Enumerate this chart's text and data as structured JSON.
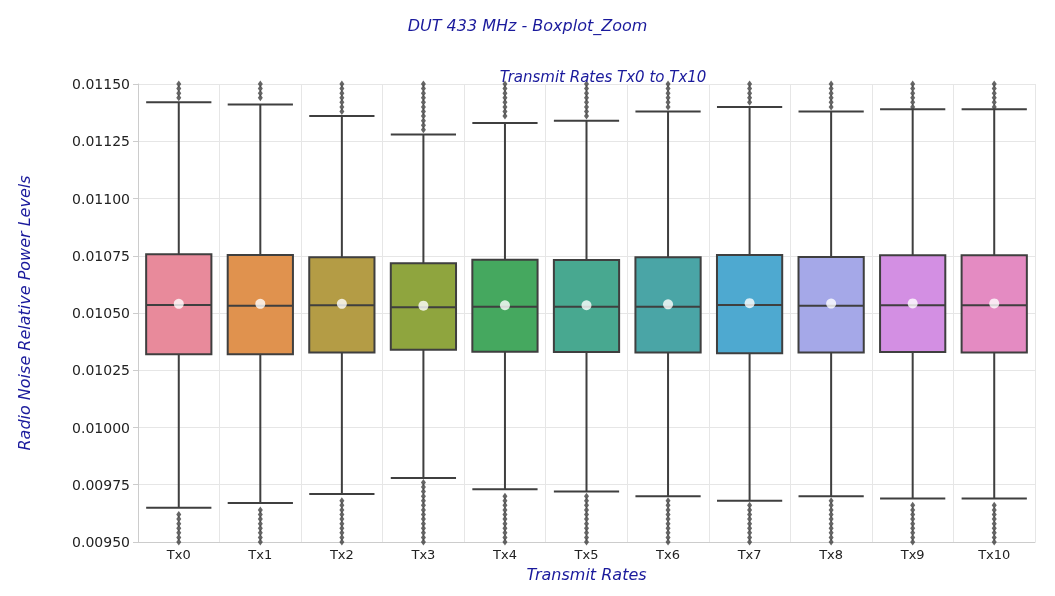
{
  "chart_data": {
    "type": "box",
    "title": "DUT 433 MHz - Boxplot_Zoom",
    "subtitle": "Transmit Rates Tx0 to Tx10",
    "xlabel": "Transmit Rates",
    "ylabel": "Radio Noise Relative Power Levels",
    "categories": [
      "Tx0",
      "Tx1",
      "Tx2",
      "Tx3",
      "Tx4",
      "Tx5",
      "Tx6",
      "Tx7",
      "Tx8",
      "Tx9",
      "Tx10"
    ],
    "colors": [
      "#e88a9b",
      "#e0924e",
      "#b49c45",
      "#8fa53e",
      "#45a85f",
      "#48a890",
      "#4aa5a6",
      "#4ea9d0",
      "#a5a8e8",
      "#d38fe3",
      "#e48bc2"
    ],
    "boxes": [
      {
        "low": 0.00965,
        "q1": 0.01032,
        "median": 0.010535,
        "q3": 0.010757,
        "high": 0.01142,
        "mean": 0.01054,
        "outliers": [
          0.01144,
          0.01146,
          0.01148,
          0.0115,
          0.00962,
          0.0096,
          0.00958,
          0.00956,
          0.00954,
          0.00952,
          0.0095
        ]
      },
      {
        "low": 0.00967,
        "q1": 0.01032,
        "median": 0.010532,
        "q3": 0.010753,
        "high": 0.01141,
        "mean": 0.01054,
        "outliers": [
          0.01144,
          0.01146,
          0.01148,
          0.0115,
          0.00964,
          0.00962,
          0.0096,
          0.00958,
          0.00956,
          0.00954,
          0.00952,
          0.0095
        ]
      },
      {
        "low": 0.00971,
        "q1": 0.010328,
        "median": 0.010534,
        "q3": 0.010743,
        "high": 0.01136,
        "mean": 0.01054,
        "outliers": [
          0.01138,
          0.0114,
          0.01142,
          0.01144,
          0.01146,
          0.01148,
          0.0115,
          0.00968,
          0.00966,
          0.00964,
          0.00962,
          0.0096,
          0.00958,
          0.00956,
          0.00954,
          0.00952,
          0.0095
        ]
      },
      {
        "low": 0.00978,
        "q1": 0.010339,
        "median": 0.010525,
        "q3": 0.010717,
        "high": 0.01128,
        "mean": 0.010532,
        "outliers": [
          0.0113,
          0.01132,
          0.01134,
          0.01136,
          0.01138,
          0.0114,
          0.01142,
          0.01144,
          0.01146,
          0.01148,
          0.0115,
          0.00976,
          0.00974,
          0.00972,
          0.0097,
          0.00968,
          0.00966,
          0.00964,
          0.00962,
          0.0096,
          0.00958,
          0.00956,
          0.00954,
          0.00952,
          0.0095
        ]
      },
      {
        "low": 0.00973,
        "q1": 0.010331,
        "median": 0.010527,
        "q3": 0.010732,
        "high": 0.01133,
        "mean": 0.010534,
        "outliers": [
          0.01136,
          0.01138,
          0.0114,
          0.01142,
          0.01144,
          0.01146,
          0.01148,
          0.0115,
          0.0097,
          0.00968,
          0.00966,
          0.00964,
          0.00962,
          0.0096,
          0.00958,
          0.00956,
          0.00954,
          0.00952,
          0.0095
        ]
      },
      {
        "low": 0.00972,
        "q1": 0.01033,
        "median": 0.010527,
        "q3": 0.010731,
        "high": 0.01134,
        "mean": 0.010534,
        "outliers": [
          0.01136,
          0.01138,
          0.0114,
          0.01142,
          0.01144,
          0.01146,
          0.01148,
          0.0115,
          0.0097,
          0.00968,
          0.00966,
          0.00964,
          0.00962,
          0.0096,
          0.00958,
          0.00956,
          0.00954,
          0.00952,
          0.0095
        ]
      },
      {
        "low": 0.0097,
        "q1": 0.010328,
        "median": 0.010527,
        "q3": 0.010743,
        "high": 0.01138,
        "mean": 0.010538,
        "outliers": [
          0.0114,
          0.01142,
          0.01144,
          0.01146,
          0.01148,
          0.0115,
          0.00968,
          0.00966,
          0.00964,
          0.00962,
          0.0096,
          0.00958,
          0.00956,
          0.00954,
          0.00952,
          0.0095
        ]
      },
      {
        "low": 0.00968,
        "q1": 0.010324,
        "median": 0.010535,
        "q3": 0.010753,
        "high": 0.0114,
        "mean": 0.010543,
        "outliers": [
          0.01142,
          0.01144,
          0.01146,
          0.01148,
          0.0115,
          0.00966,
          0.00964,
          0.00962,
          0.0096,
          0.00958,
          0.00956,
          0.00954,
          0.00952,
          0.0095
        ]
      },
      {
        "low": 0.0097,
        "q1": 0.010328,
        "median": 0.010532,
        "q3": 0.010745,
        "high": 0.01138,
        "mean": 0.010541,
        "outliers": [
          0.0114,
          0.01142,
          0.01144,
          0.01146,
          0.01148,
          0.0115,
          0.00968,
          0.00966,
          0.00964,
          0.00962,
          0.0096,
          0.00958,
          0.00956,
          0.00954,
          0.00952,
          0.0095
        ]
      },
      {
        "low": 0.00969,
        "q1": 0.01033,
        "median": 0.010534,
        "q3": 0.010752,
        "high": 0.01139,
        "mean": 0.010542,
        "outliers": [
          0.0114,
          0.01142,
          0.01144,
          0.01146,
          0.01148,
          0.0115,
          0.00966,
          0.00964,
          0.00962,
          0.0096,
          0.00958,
          0.00956,
          0.00954,
          0.00952,
          0.0095
        ]
      },
      {
        "low": 0.00969,
        "q1": 0.010327,
        "median": 0.010534,
        "q3": 0.010752,
        "high": 0.01139,
        "mean": 0.010542,
        "outliers": [
          0.0114,
          0.01142,
          0.01144,
          0.01146,
          0.01148,
          0.0115,
          0.00966,
          0.00964,
          0.00962,
          0.0096,
          0.00958,
          0.00956,
          0.00954,
          0.00952,
          0.0095
        ]
      }
    ],
    "ylim": [
      0.0095,
      0.0115
    ],
    "yticks": [
      {
        "value": 0.0095,
        "label": "0.00950"
      },
      {
        "value": 0.00975,
        "label": "0.00975"
      },
      {
        "value": 0.01,
        "label": "0.01000"
      },
      {
        "value": 0.01025,
        "label": "0.01025"
      },
      {
        "value": 0.0105,
        "label": "0.01050"
      },
      {
        "value": 0.01075,
        "label": "0.01075"
      },
      {
        "value": 0.011,
        "label": "0.01100"
      },
      {
        "value": 0.01125,
        "label": "0.01125"
      },
      {
        "value": 0.0115,
        "label": "0.01150"
      }
    ],
    "grid": true,
    "marker": "diamond"
  }
}
